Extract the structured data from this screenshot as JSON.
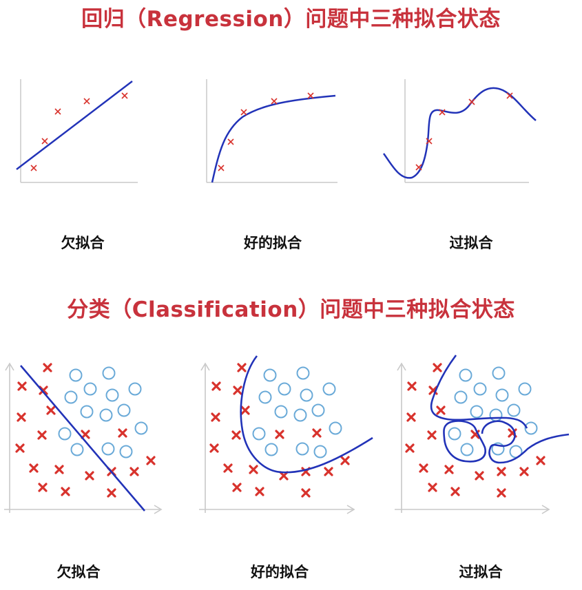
{
  "regression": {
    "title": "回归（Regression）问题中三种拟合状态",
    "captions": [
      "欠拟合",
      "好的拟合",
      "过拟合"
    ]
  },
  "classification": {
    "title": "分类（Classification）问题中三种拟合状态",
    "captions": [
      "欠拟合",
      "好的拟合",
      "过拟合"
    ]
  },
  "colors": {
    "title": "#c8323c",
    "curve": "#2233b8",
    "cross": "#d8322c",
    "circle": "#6aaad8",
    "axis": "#c8c8c8"
  },
  "legend": {
    "cross": "cross-marker",
    "circle": "circle-marker"
  }
}
